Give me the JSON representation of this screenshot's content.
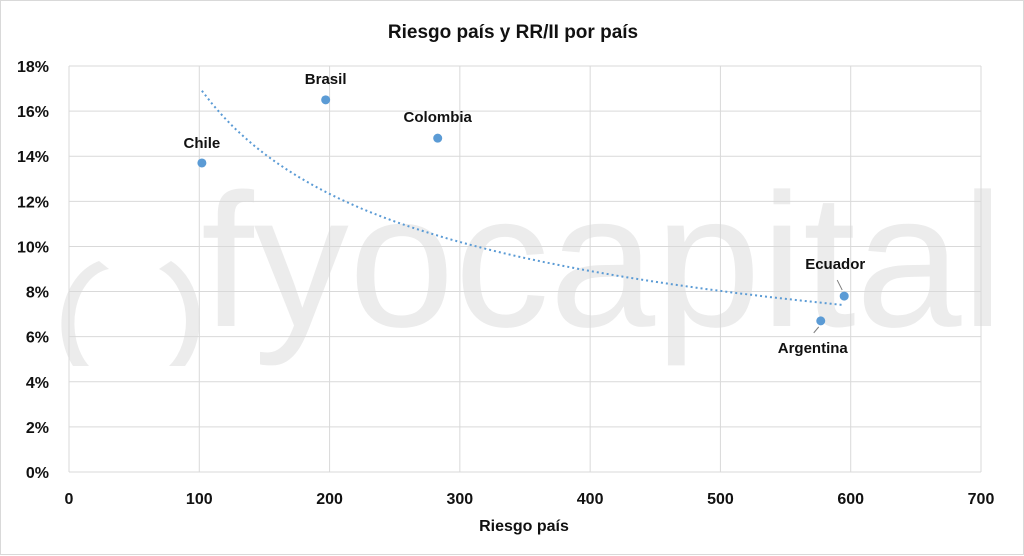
{
  "chart_data": {
    "type": "scatter",
    "title": "Riesgo país y RR/II por país",
    "xlabel": "Riesgo país",
    "ylabel": "",
    "xlim": [
      0,
      700
    ],
    "ylim": [
      0,
      18
    ],
    "x_ticks": [
      0,
      100,
      200,
      300,
      400,
      500,
      600,
      700
    ],
    "y_ticks": [
      0,
      2,
      4,
      6,
      8,
      10,
      12,
      14,
      16,
      18
    ],
    "y_tick_suffix": "%",
    "grid": true,
    "legend": "none",
    "marker_color": "#5b9bd5",
    "trendline": {
      "type": "power",
      "style": "dotted",
      "color": "#5b9bd5",
      "x_start": 102,
      "x_end": 595,
      "y_start": 16.9,
      "y_end": 7.4
    },
    "points": [
      {
        "label": "Chile",
        "x": 102,
        "y": 13.7
      },
      {
        "label": "Brasil",
        "x": 197,
        "y": 16.5
      },
      {
        "label": "Colombia",
        "x": 283,
        "y": 14.8
      },
      {
        "label": "Argentina",
        "x": 577,
        "y": 6.7
      },
      {
        "label": "Ecuador",
        "x": 595,
        "y": 7.8
      }
    ]
  },
  "watermark": {
    "text": "fyocapital",
    "icon": "fyo-logo-icon"
  }
}
